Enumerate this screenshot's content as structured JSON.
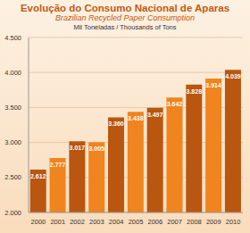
{
  "chart_data": {
    "type": "bar",
    "title": "Evolução do Consumo Nacional de Aparas",
    "subtitle": "Brazilian Recycled Paper Consumption",
    "y_label": "Mil Toneladas / Thousands of Tons",
    "categories": [
      "2000",
      "2001",
      "2002",
      "2003",
      "2004",
      "2005",
      "2006",
      "2007",
      "2008",
      "2009",
      "2010"
    ],
    "values": [
      2612,
      2777,
      3017,
      3005,
      3360,
      3438,
      3497,
      3642,
      3828,
      3914,
      4039
    ],
    "value_labels": [
      "2.612",
      "2.777",
      "3.017",
      "3.005",
      "3.360",
      "3.438",
      "3.497",
      "3.642",
      "3.828",
      "3.914",
      "4.039"
    ],
    "colors": [
      "#b9560f",
      "#f0841e",
      "#b9560f",
      "#f0841e",
      "#b9560f",
      "#f0841e",
      "#b9560f",
      "#f0841e",
      "#b9560f",
      "#f0841e",
      "#b9560f"
    ],
    "ylim": [
      2000,
      4500
    ],
    "yticks": [
      {
        "value": 2000,
        "label": "2.000"
      },
      {
        "value": 2500,
        "label": "2.500"
      },
      {
        "value": 3000,
        "label": "3.000"
      },
      {
        "value": 3500,
        "label": "3.500"
      },
      {
        "value": 4000,
        "label": "4.000"
      },
      {
        "value": 4500,
        "label": "4.500"
      }
    ],
    "grid": true,
    "data_labels": true
  }
}
